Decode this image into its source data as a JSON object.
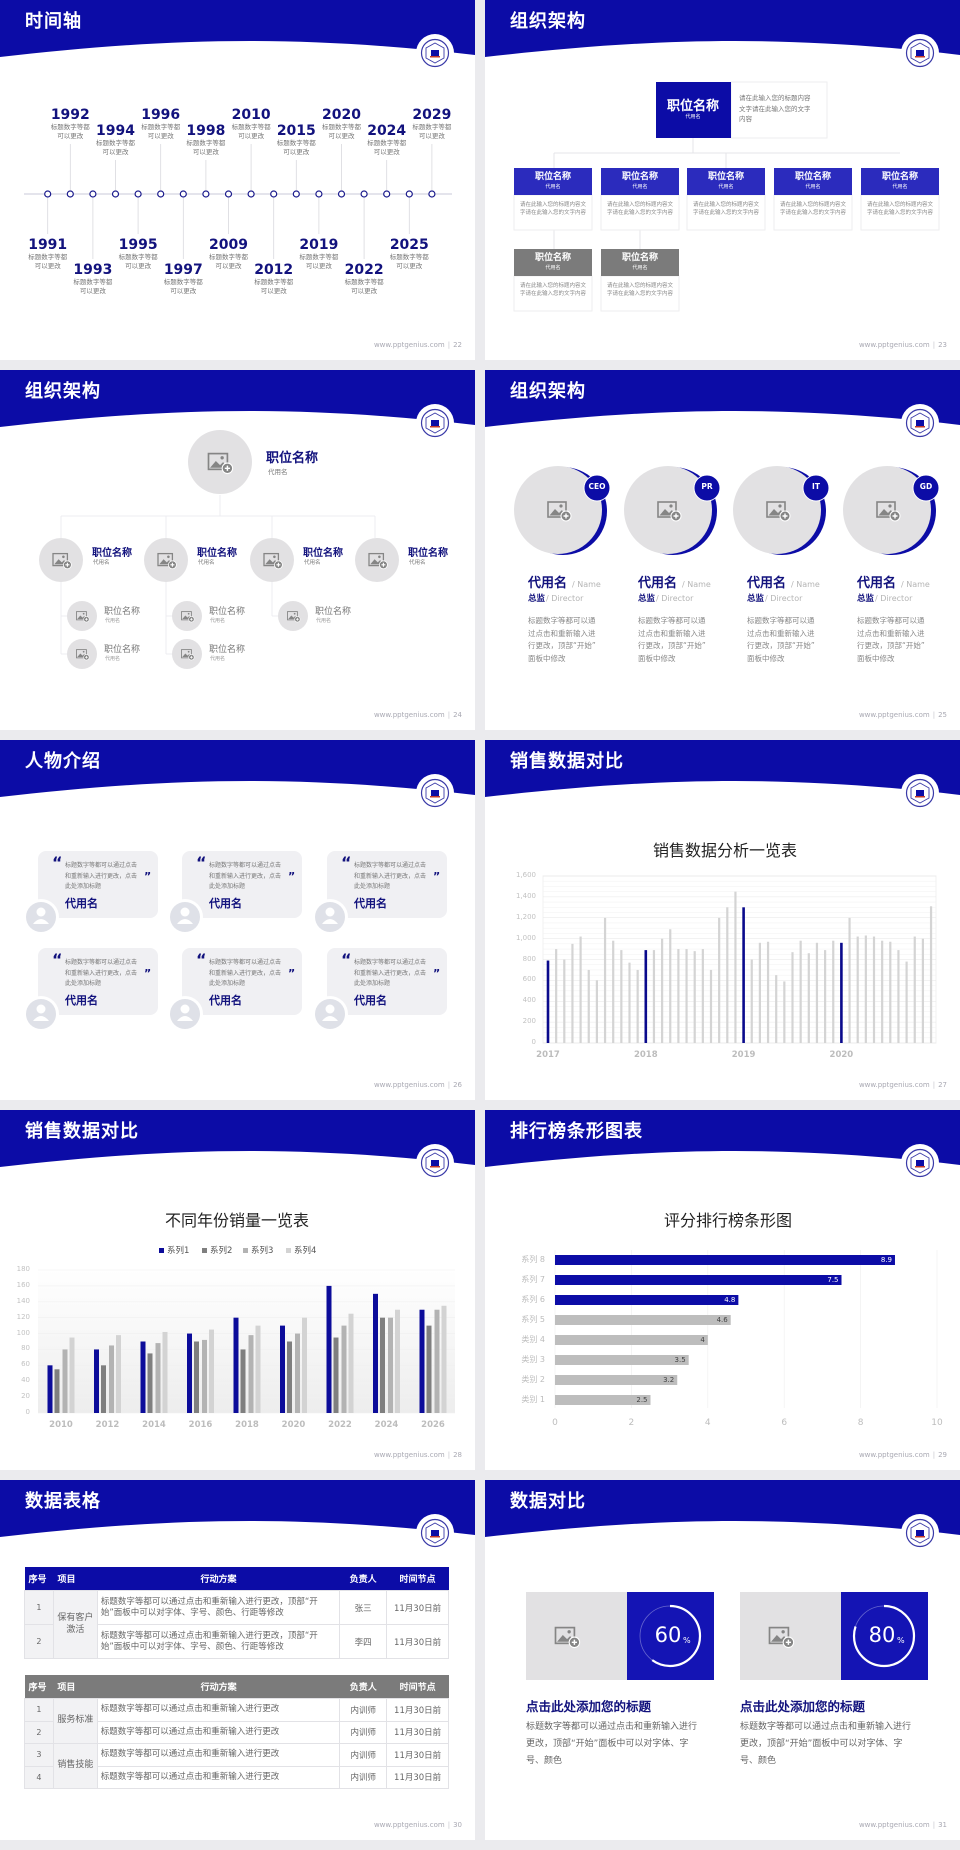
{
  "footer_url": "www.pptgenius.com",
  "footer_sep": "|",
  "colors": {
    "primary": "#0c0ca6",
    "accent": "#2b2bbd",
    "dark_navy": "#12127d",
    "gray_header": "#7b7b7b",
    "bar_gray": "#c8c8c8",
    "page_bg": "#ebebee"
  },
  "slides": [
    {
      "title": "时间轴",
      "page": "22",
      "timeline": [
        {
          "year": "1991",
          "text": [
            "标题数字等都",
            "可以更改"
          ]
        },
        {
          "year": "1992",
          "text": [
            "标题数字等都",
            "可以更改"
          ]
        },
        {
          "year": "1993",
          "text": [
            "标题数字等都",
            "可以更改"
          ]
        },
        {
          "year": "1994",
          "text": [
            "标题数字等都",
            "可以更改"
          ]
        },
        {
          "year": "1995",
          "text": [
            "标题数字等都",
            "可以更改"
          ]
        },
        {
          "year": "1996",
          "text": [
            "标题数字等都",
            "可以更改"
          ]
        },
        {
          "year": "1997",
          "text": [
            "标题数字等都",
            "可以更改"
          ]
        },
        {
          "year": "1998",
          "text": [
            "标题数字等都",
            "可以更改"
          ]
        },
        {
          "year": "2009",
          "text": [
            "标题数字等都",
            "可以更改"
          ]
        },
        {
          "year": "2010",
          "text": [
            "标题数字等都",
            "可以更改"
          ]
        },
        {
          "year": "2012",
          "text": [
            "标题数字等都",
            "可以更改"
          ]
        },
        {
          "year": "2015",
          "text": [
            "标题数字等都",
            "可以更改"
          ]
        },
        {
          "year": "2019",
          "text": [
            "标题数字等都",
            "可以更改"
          ]
        },
        {
          "year": "2020",
          "text": [
            "标题数字等都",
            "可以更改"
          ]
        },
        {
          "year": "2022",
          "text": [
            "标题数字等都",
            "可以更改"
          ]
        },
        {
          "year": "2024",
          "text": [
            "标题数字等都",
            "可以更改"
          ]
        },
        {
          "year": "2025",
          "text": [
            "标题数字等都",
            "可以更改"
          ]
        },
        {
          "year": "2029",
          "text": [
            "标题数字等都",
            "可以更改"
          ]
        }
      ]
    },
    {
      "title": "组织架构",
      "page": "23",
      "top": {
        "title": "职位名称",
        "sub": "代用名",
        "desc": [
          "请在此输入您的标题内容",
          "文字请在此输入您的文字",
          "内容"
        ]
      },
      "boxes": [
        {
          "title": "职位名称",
          "sub": "代用名",
          "desc": [
            "请在此输入您的标题内容文",
            "字请在此输入您的文字内容"
          ],
          "style": "blue"
        },
        {
          "title": "职位名称",
          "sub": "代用名",
          "desc": [
            "请在此输入您的标题内容文",
            "字请在此输入您的文字内容"
          ],
          "style": "blue"
        },
        {
          "title": "职位名称",
          "sub": "代用名",
          "desc": [
            "请在此输入您的标题内容文",
            "字请在此输入您的文字内容"
          ],
          "style": "blue"
        },
        {
          "title": "职位名称",
          "sub": "代用名",
          "desc": [
            "请在此输入您的标题内容文",
            "字请在此输入您的文字内容"
          ],
          "style": "blue"
        },
        {
          "title": "职位名称",
          "sub": "代用名",
          "desc": [
            "请在此输入您的标题内容文",
            "字请在此输入您的文字内容"
          ],
          "style": "blue"
        },
        {
          "title": "职位名称",
          "sub": "代用名",
          "desc": [
            "请在此输入您的标题内容文",
            "字请在此输入您的文字内容"
          ],
          "style": "gray"
        },
        {
          "title": "职位名称",
          "sub": "代用名",
          "desc": [
            "请在此输入您的标题内容文",
            "字请在此输入您的文字内容"
          ],
          "style": "gray"
        }
      ]
    },
    {
      "title": "组织架构",
      "page": "24",
      "top": {
        "title": "职位名称",
        "sub": "代用名"
      },
      "mid": [
        {
          "title": "职位名称",
          "sub": "代用名",
          "children": [
            {
              "title": "职位名称",
              "sub": "代用名"
            },
            {
              "title": "职位名称",
              "sub": "代用名"
            }
          ]
        },
        {
          "title": "职位名称",
          "sub": "代用名",
          "children": [
            {
              "title": "职位名称",
              "sub": "代用名"
            },
            {
              "title": "职位名称",
              "sub": "代用名"
            }
          ]
        },
        {
          "title": "职位名称",
          "sub": "代用名",
          "children": [
            {
              "title": "职位名称",
              "sub": "代用名"
            }
          ]
        },
        {
          "title": "职位名称",
          "sub": "代用名",
          "children": []
        }
      ]
    },
    {
      "title": "组织架构",
      "page": "25",
      "members": [
        {
          "badge": "CEO",
          "name": "代用名",
          "name_en": "/ Name",
          "role": "总监",
          "role_en": "/  Director",
          "desc": [
            "标题数字等都可以通",
            "过点击和重新输入进",
            "行更改，顶部“开始”",
            "面板中修改"
          ]
        },
        {
          "badge": "PR",
          "name": "代用名",
          "name_en": "/ Name",
          "role": "总监",
          "role_en": "/  Director",
          "desc": [
            "标题数字等都可以通",
            "过点击和重新输入进",
            "行更改，顶部“开始”",
            "面板中修改"
          ]
        },
        {
          "badge": "IT",
          "name": "代用名",
          "name_en": "/ Name",
          "role": "总监",
          "role_en": "/  Director",
          "desc": [
            "标题数字等都可以通",
            "过点击和重新输入进",
            "行更改，顶部“开始”",
            "面板中修改"
          ]
        },
        {
          "badge": "GD",
          "name": "代用名",
          "name_en": "/ Name",
          "role": "总监",
          "role_en": "/  Director",
          "desc": [
            "标题数字等都可以通",
            "过点击和重新输入进",
            "行更改，顶部“开始”",
            "面板中修改"
          ]
        }
      ]
    },
    {
      "title": "人物介绍",
      "page": "26",
      "quote_open": "“",
      "quote_close": "”",
      "cards": [
        {
          "text": [
            "标题数字等都可以通过点击",
            "和重新输入进行更改，点击",
            "此处添加标题"
          ],
          "name": "代用名"
        },
        {
          "text": [
            "标题数字等都可以通过点击",
            "和重新输入进行更改，点击",
            "此处添加标题"
          ],
          "name": "代用名"
        },
        {
          "text": [
            "标题数字等都可以通过点击",
            "和重新输入进行更改，点击",
            "此处添加标题"
          ],
          "name": "代用名"
        },
        {
          "text": [
            "标题数字等都可以通过点击",
            "和重新输入进行更改，点击",
            "此处添加标题"
          ],
          "name": "代用名"
        },
        {
          "text": [
            "标题数字等都可以通过点击",
            "和重新输入进行更改，点击",
            "此处添加标题"
          ],
          "name": "代用名"
        },
        {
          "text": [
            "标题数字等都可以通过点击",
            "和重新输入进行更改，点击",
            "此处添加标题"
          ],
          "name": "代用名"
        }
      ]
    },
    {
      "title": "销售数据对比",
      "page": "27"
    },
    {
      "title": "销售数据对比",
      "page": "28"
    },
    {
      "title": "排行榜条形图表",
      "page": "29"
    },
    {
      "title": "数据表格",
      "page": "30",
      "tables": [
        {
          "headers": [
            "序号",
            "项目",
            "行动方案",
            "负责人",
            "时间节点"
          ],
          "groups": [
            {
              "item": "保有客户激活",
              "rows": [
                {
                  "no": "1",
                  "plan": "标题数字等都可以通过点击和重新输入进行更改，顶部“开始”面板中可以对字体、字号、颜色、行距等修改",
                  "owner": "张三",
                  "due": "11月30日前"
                },
                {
                  "no": "2",
                  "plan": "标题数字等都可以通过点击和重新输入进行更改，顶部“开始”面板中可以对字体、字号、颜色、行距等修改",
                  "owner": "李四",
                  "due": "11月30日前"
                }
              ]
            }
          ]
        },
        {
          "headers": [
            "序号",
            "项目",
            "行动方案",
            "负责人",
            "时间节点"
          ],
          "groups": [
            {
              "item": "服务标准",
              "rows": [
                {
                  "no": "1",
                  "plan": "标题数字等都可以通过点击和重新输入进行更改",
                  "owner": "内训师",
                  "due": "11月30日前"
                },
                {
                  "no": "2",
                  "plan": "标题数字等都可以通过点击和重新输入进行更改",
                  "owner": "内训师",
                  "due": "11月30日前"
                }
              ]
            },
            {
              "item": "销售技能",
              "rows": [
                {
                  "no": "3",
                  "plan": "标题数字等都可以通过点击和重新输入进行更改",
                  "owner": "内训师",
                  "due": "11月30日前"
                },
                {
                  "no": "4",
                  "plan": "标题数字等都可以通过点击和重新输入进行更改",
                  "owner": "内训师",
                  "due": "11月30日前"
                }
              ]
            }
          ]
        }
      ]
    },
    {
      "title": "数据对比",
      "page": "31",
      "cards": [
        {
          "percent": 60,
          "value_label": "60",
          "unit": "%",
          "heading": "点击此处添加您的标题",
          "desc": [
            "标题数字等都可以通过点击和重新输入进行",
            "更改，顶部“开始”面板中可以对字体、字",
            "号、颜色"
          ]
        },
        {
          "percent": 80,
          "value_label": "80",
          "unit": "%",
          "heading": "点击此处添加您的标题",
          "desc": [
            "标题数字等都可以通过点击和重新输入进行",
            "更改，顶部“开始”面板中可以对字体、字",
            "号、颜色"
          ]
        }
      ]
    }
  ],
  "chart_data": [
    {
      "type": "bar",
      "title": "销售数据分析一览表",
      "xlabel": "",
      "ylabel": "",
      "ylim": [
        0,
        1600
      ],
      "ytick_labels": [
        "0",
        "200",
        "400",
        "600",
        "800",
        "1,000",
        "1,200",
        "1,400",
        "1,600"
      ],
      "year_labels": [
        "2017",
        "2018",
        "2019",
        "2020"
      ],
      "periods_per_year": 12,
      "values": [
        790,
        900,
        800,
        950,
        1020,
        700,
        600,
        1200,
        980,
        890,
        770,
        700,
        890,
        890,
        1000,
        1090,
        900,
        900,
        880,
        900,
        700,
        1200,
        1300,
        1450,
        1300,
        800,
        960,
        970,
        650,
        590,
        870,
        980,
        860,
        960,
        890,
        980,
        960,
        1200,
        1020,
        1030,
        1020,
        980,
        970,
        890,
        780,
        1020,
        1000,
        1310
      ],
      "highlight": "first bar of each year in blue, others light gray",
      "grid": true
    },
    {
      "type": "bar",
      "title": "不同年份销量一览表",
      "xlabel": "",
      "ylabel": "",
      "ylim": [
        0,
        180
      ],
      "ytick_labels": [
        "0",
        "20",
        "40",
        "60",
        "80",
        "100",
        "120",
        "140",
        "160",
        "180"
      ],
      "categories": [
        "2010",
        "2012",
        "2014",
        "2016",
        "2018",
        "2020",
        "2022",
        "2024",
        "2026"
      ],
      "legend": "top",
      "series": [
        {
          "name": "系列1",
          "color": "#0c0c9a",
          "values": [
            60,
            80,
            90,
            100,
            120,
            110,
            160,
            150,
            130
          ]
        },
        {
          "name": "系列2",
          "color": "#7f7f7f",
          "values": [
            55,
            60,
            75,
            90,
            80,
            90,
            95,
            120,
            110
          ]
        },
        {
          "name": "系列3",
          "color": "#b3b3b3",
          "values": [
            80,
            85,
            88,
            92,
            98,
            100,
            110,
            120,
            130
          ]
        },
        {
          "name": "系列4",
          "color": "#d3d3d3",
          "values": [
            95,
            98,
            102,
            105,
            110,
            120,
            125,
            130,
            135
          ]
        }
      ],
      "grid": true
    },
    {
      "type": "bar",
      "orientation": "horizontal",
      "title": "评分排行榜条形图",
      "xlabel": "",
      "ylabel": "",
      "xlim": [
        0,
        10
      ],
      "xtick_labels": [
        "0",
        "2",
        "4",
        "6",
        "8",
        "10"
      ],
      "categories": [
        "类别 1",
        "类别 2",
        "类别 3",
        "类别 4",
        "系列 5",
        "系列 6",
        "系列 7",
        "系列 8"
      ],
      "values": [
        2.5,
        3.2,
        3.5,
        4,
        4.6,
        4.8,
        7.5,
        8.9
      ],
      "colors": [
        "#bdbdbd",
        "#bdbdbd",
        "#bdbdbd",
        "#bdbdbd",
        "#bdbdbd",
        "#0c0ca6",
        "#0c0ca6",
        "#0c0ca6"
      ],
      "data_labels": true,
      "grid": true
    }
  ]
}
